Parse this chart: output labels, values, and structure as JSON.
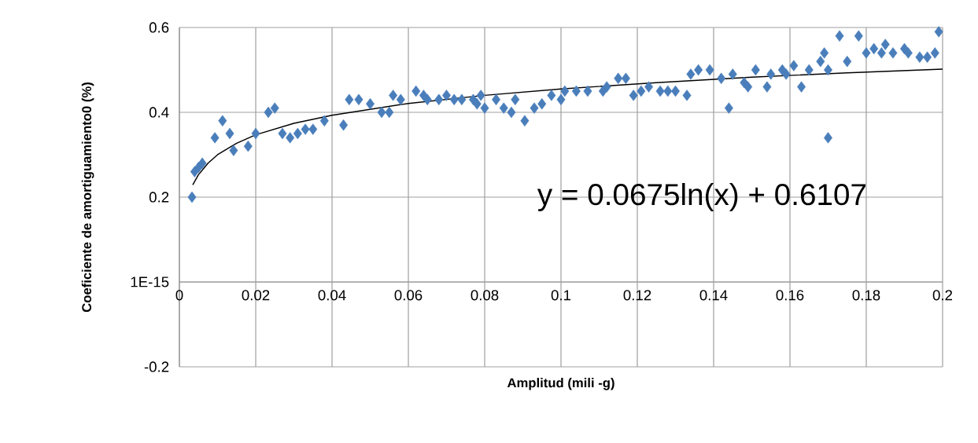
{
  "chart_data": {
    "type": "scatter",
    "xlabel": "Amplitud (mili -g)",
    "ylabel": "Coeficiente de amortiguamiento0 (%)",
    "grid": true,
    "xlim": [
      0,
      0.2
    ],
    "xticks": [
      0,
      0.02,
      0.04,
      0.06,
      0.08,
      0.1,
      0.12,
      0.14,
      0.16,
      0.18,
      0.2
    ],
    "ylim": [
      -0.2,
      0.6
    ],
    "yticks": [
      -0.2,
      {
        "value": 0,
        "label": "1E-15"
      },
      0.2,
      0.4,
      0.6
    ],
    "annotations": [
      "y = 0.0675ln(x) + 0.6107"
    ],
    "series": [
      {
        "marker": "diamond",
        "color": "#4a7ebb",
        "x": [
          0.0033,
          0.004,
          0.005,
          0.006,
          0.0093,
          0.0113,
          0.0132,
          0.0142,
          0.018,
          0.02,
          0.0233,
          0.025,
          0.027,
          0.029,
          0.031,
          0.033,
          0.035,
          0.038,
          0.043,
          0.0445,
          0.047,
          0.05,
          0.053,
          0.055,
          0.056,
          0.058,
          0.062,
          0.064,
          0.065,
          0.068,
          0.07,
          0.072,
          0.074,
          0.077,
          0.078,
          0.079,
          0.08,
          0.083,
          0.085,
          0.087,
          0.088,
          0.0905,
          0.093,
          0.095,
          0.0975,
          0.1,
          0.101,
          0.104,
          0.107,
          0.111,
          0.112,
          0.115,
          0.117,
          0.119,
          0.121,
          0.123,
          0.126,
          0.128,
          0.13,
          0.133,
          0.134,
          0.136,
          0.139,
          0.142,
          0.144,
          0.145,
          0.148,
          0.149,
          0.151,
          0.154,
          0.155,
          0.158,
          0.159,
          0.161,
          0.163,
          0.165,
          0.168,
          0.169,
          0.17,
          0.17,
          0.173,
          0.175,
          0.178,
          0.18,
          0.182,
          0.184,
          0.185,
          0.187,
          0.19,
          0.191,
          0.194,
          0.196,
          0.198,
          0.199
        ],
        "values": [
          0.2,
          0.26,
          0.27,
          0.28,
          0.34,
          0.38,
          0.35,
          0.31,
          0.32,
          0.35,
          0.4,
          0.41,
          0.35,
          0.34,
          0.35,
          0.36,
          0.36,
          0.38,
          0.37,
          0.43,
          0.43,
          0.42,
          0.4,
          0.4,
          0.44,
          0.43,
          0.45,
          0.44,
          0.43,
          0.43,
          0.44,
          0.43,
          0.43,
          0.43,
          0.42,
          0.44,
          0.41,
          0.43,
          0.41,
          0.4,
          0.43,
          0.38,
          0.41,
          0.42,
          0.44,
          0.43,
          0.45,
          0.45,
          0.45,
          0.45,
          0.46,
          0.48,
          0.48,
          0.44,
          0.45,
          0.46,
          0.45,
          0.45,
          0.45,
          0.44,
          0.49,
          0.5,
          0.5,
          0.48,
          0.41,
          0.49,
          0.47,
          0.46,
          0.5,
          0.46,
          0.49,
          0.5,
          0.49,
          0.51,
          0.46,
          0.5,
          0.52,
          0.54,
          0.5,
          0.34,
          0.58,
          0.52,
          0.58,
          0.54,
          0.55,
          0.54,
          0.56,
          0.54,
          0.55,
          0.54,
          0.53,
          0.53,
          0.54,
          0.59
        ]
      },
      {
        "type": "line",
        "color": "#000000",
        "x": [
          0.0035,
          0.005,
          0.0075,
          0.01,
          0.015,
          0.02,
          0.03,
          0.04,
          0.06,
          0.08,
          0.1,
          0.125,
          0.15,
          0.175,
          0.2
        ],
        "values": [
          0.229,
          0.253,
          0.28,
          0.3,
          0.327,
          0.347,
          0.374,
          0.393,
          0.421,
          0.44,
          0.455,
          0.47,
          0.483,
          0.493,
          0.502
        ]
      }
    ]
  }
}
